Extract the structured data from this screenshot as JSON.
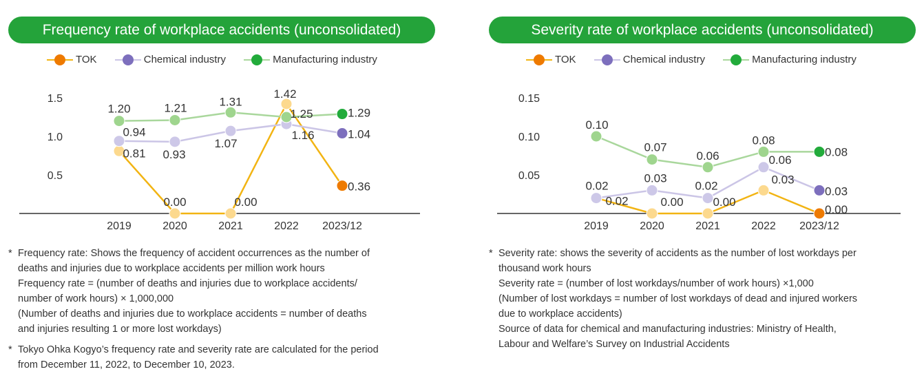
{
  "colors": {
    "title_bg": "#24a33a",
    "tok_line": "#f2b413",
    "tok_point_light": "#fcd98e",
    "tok_point_last": "#ee7a00",
    "chemical_line": "#cbc5e6",
    "chemical_point_light": "#cdc8e8",
    "chemical_point_last": "#7d6fbd",
    "manufacturing_line": "#a9d79c",
    "manufacturing_point_light": "#9fd58e",
    "manufacturing_point_last": "#22ab3b",
    "axis": "#333333",
    "text": "#333333"
  },
  "chart_data": [
    {
      "type": "line",
      "title": "Frequency rate of workplace accidents (unconsolidated)",
      "categories": [
        "2019",
        "2020",
        "2021",
        "2022",
        "2023/12"
      ],
      "ylim": [
        0,
        1.5
      ],
      "yticks": [
        "0.5",
        "1.0",
        "1.5"
      ],
      "ytick_values": [
        0.5,
        1.0,
        1.5
      ],
      "grid": false,
      "legend": "top",
      "series": [
        {
          "name": "TOK",
          "values": [
            0.81,
            0.0,
            0.0,
            1.42,
            0.36
          ],
          "labels": [
            "0.81",
            "0.00",
            "0.00",
            "1.42",
            "0.36"
          ]
        },
        {
          "name": "Chemical industry",
          "values": [
            0.94,
            0.93,
            1.07,
            1.16,
            1.04
          ],
          "labels": [
            "0.94",
            "0.93",
            "1.07",
            "1.16",
            "1.04"
          ]
        },
        {
          "name": "Manufacturing industry",
          "values": [
            1.2,
            1.21,
            1.31,
            1.25,
            1.29
          ],
          "labels": [
            "1.20",
            "1.21",
            "1.31",
            "1.25",
            "1.29"
          ]
        }
      ]
    },
    {
      "type": "line",
      "title": "Severity rate of workplace accidents (unconsolidated)",
      "categories": [
        "2019",
        "2020",
        "2021",
        "2022",
        "2023/12"
      ],
      "ylim": [
        0,
        0.15
      ],
      "yticks": [
        "0.05",
        "0.10",
        "0.15"
      ],
      "ytick_values": [
        0.05,
        0.1,
        0.15
      ],
      "grid": false,
      "legend": "top",
      "series": [
        {
          "name": "TOK",
          "values": [
            0.02,
            0.0,
            0.0,
            0.03,
            0.0
          ],
          "labels": [
            "0.02",
            "0.00",
            "0.00",
            "0.03",
            "0.00"
          ]
        },
        {
          "name": "Chemical industry",
          "values": [
            0.02,
            0.03,
            0.02,
            0.06,
            0.03
          ],
          "labels": [
            "0.02",
            "0.03",
            "0.02",
            "0.06",
            "0.03"
          ]
        },
        {
          "name": "Manufacturing industry",
          "values": [
            0.1,
            0.07,
            0.06,
            0.08,
            0.08
          ],
          "labels": [
            "0.10",
            "0.07",
            "0.06",
            "0.08",
            "0.08"
          ]
        }
      ]
    }
  ],
  "notes_left": [
    {
      "star": "*",
      "lines": [
        "Frequency rate: Shows the frequency of accident occurrences as the number of",
        "deaths and injuries due to workplace accidents per million work hours",
        "Frequency rate = (number of deaths and injuries due to workplace accidents/",
        "number of work hours) × 1,000,000",
        "(Number of deaths and injuries due to workplace accidents = number of deaths",
        "and injuries resulting 1 or more lost workdays)"
      ]
    },
    {
      "star": "*",
      "lines": [
        "Tokyo Ohka Kogyo’s frequency rate and severity rate are calculated for the period",
        "from December 11, 2022, to December 10, 2023."
      ]
    }
  ],
  "notes_right": [
    {
      "star": "*",
      "lines": [
        "Severity rate: shows the severity of accidents as the number of lost workdays per",
        "thousand work hours",
        "Severity rate = (number of lost workdays/number of work hours) ×1,000",
        "(Number of lost workdays = number of lost workdays of dead and injured workers",
        "due to workplace accidents)",
        "Source of data for chemical and manufacturing industries: Ministry of Health,",
        "Labour and Welfare’s Survey on Industrial Accidents"
      ]
    }
  ]
}
